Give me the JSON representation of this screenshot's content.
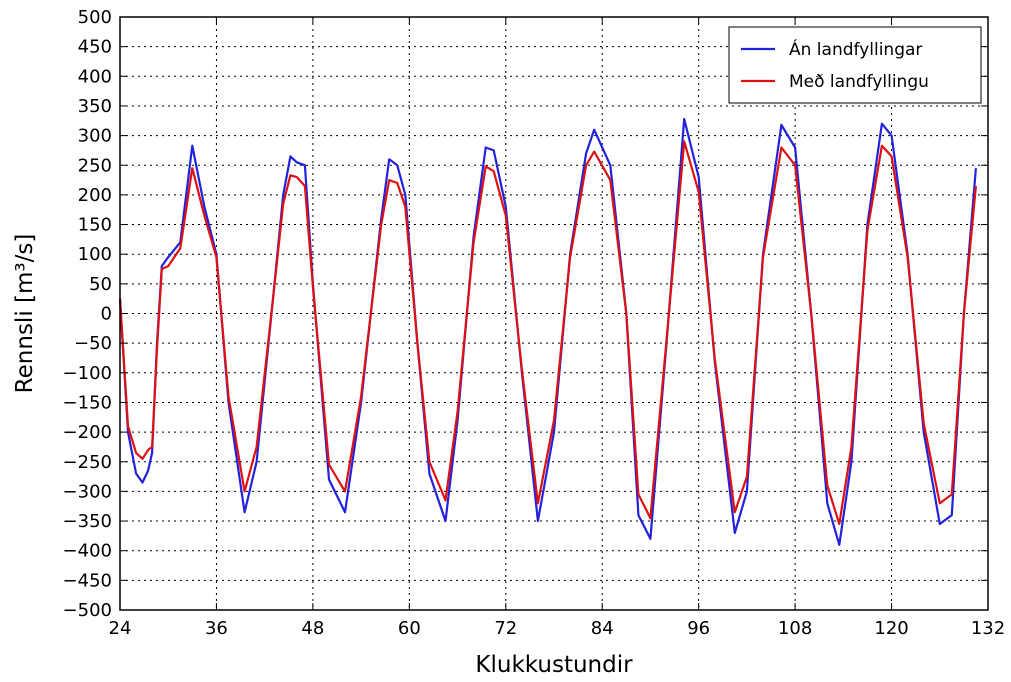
{
  "chart_data": {
    "type": "line",
    "title": "",
    "xlabel": "Klukkustundir",
    "ylabel": "Rennsli [m³/s]",
    "xlim": [
      24,
      132
    ],
    "ylim": [
      -500,
      500
    ],
    "xticks": [
      24,
      36,
      48,
      60,
      72,
      84,
      96,
      108,
      120,
      132
    ],
    "yticks": [
      -500,
      -450,
      -400,
      -350,
      -300,
      -250,
      -200,
      -150,
      -100,
      -50,
      0,
      50,
      100,
      150,
      200,
      250,
      300,
      350,
      400,
      450,
      500
    ],
    "grid": true,
    "legend_position": "top-right",
    "series": [
      {
        "name": "Án landfyllingar",
        "color": "#2222dd",
        "x": [
          24,
          25,
          26,
          26.8,
          27.5,
          28,
          28.6,
          29.2,
          30,
          31.5,
          33,
          34.5,
          36,
          37.5,
          39.5,
          41,
          43,
          44.3,
          45.2,
          46,
          47,
          48,
          50,
          52,
          54,
          56.5,
          57.5,
          58.5,
          59.5,
          61,
          62.5,
          64.5,
          66,
          68,
          69.5,
          70.5,
          72,
          74,
          76,
          78,
          80,
          82,
          83,
          85,
          87,
          88.5,
          90,
          92,
          94.2,
          96,
          98,
          100.5,
          102,
          104,
          106.3,
          108,
          110,
          112,
          113.5,
          115,
          117,
          118.8,
          120,
          122,
          124,
          126,
          127.5,
          129,
          130.5
        ],
        "y": [
          25,
          -200,
          -270,
          -285,
          -265,
          -235,
          -50,
          80,
          95,
          120,
          283,
          180,
          100,
          -150,
          -335,
          -250,
          20,
          200,
          265,
          255,
          250,
          50,
          -280,
          -335,
          -150,
          160,
          260,
          250,
          200,
          -50,
          -270,
          -350,
          -180,
          130,
          280,
          275,
          180,
          -100,
          -350,
          -200,
          100,
          270,
          310,
          250,
          0,
          -340,
          -380,
          -50,
          328,
          230,
          -80,
          -370,
          -300,
          100,
          318,
          280,
          0,
          -320,
          -390,
          -250,
          150,
          320,
          300,
          100,
          -200,
          -355,
          -340,
          0,
          245
        ]
      },
      {
        "name": "Með landfyllingu",
        "color": "#dd1111",
        "x": [
          24,
          25,
          26,
          26.8,
          27.5,
          28,
          28.6,
          29.2,
          30,
          31.5,
          33,
          34.5,
          36,
          37.5,
          39.5,
          41,
          43,
          44.3,
          45.2,
          46,
          47,
          48,
          50,
          52,
          54,
          56.5,
          57.5,
          58.5,
          59.5,
          61,
          62.5,
          64.5,
          66,
          68,
          69.5,
          70.5,
          72,
          74,
          76,
          78,
          80,
          82,
          83,
          85,
          87,
          88.5,
          90,
          92,
          94.2,
          96,
          98,
          100.5,
          102,
          104,
          106.3,
          108,
          110,
          112,
          113.5,
          115,
          117,
          118.8,
          120,
          122,
          124,
          126,
          127.5,
          129,
          130.5
        ],
        "y": [
          25,
          -190,
          -235,
          -245,
          -230,
          -225,
          -60,
          75,
          80,
          110,
          245,
          165,
          95,
          -140,
          -300,
          -225,
          20,
          185,
          233,
          230,
          215,
          45,
          -255,
          -300,
          -140,
          150,
          225,
          220,
          180,
          -50,
          -250,
          -315,
          -165,
          120,
          248,
          240,
          165,
          -95,
          -320,
          -180,
          95,
          250,
          273,
          225,
          0,
          -305,
          -345,
          -45,
          290,
          205,
          -75,
          -335,
          -275,
          95,
          280,
          250,
          0,
          -290,
          -355,
          -225,
          140,
          283,
          265,
          95,
          -185,
          -320,
          -305,
          0,
          215
        ]
      }
    ]
  }
}
